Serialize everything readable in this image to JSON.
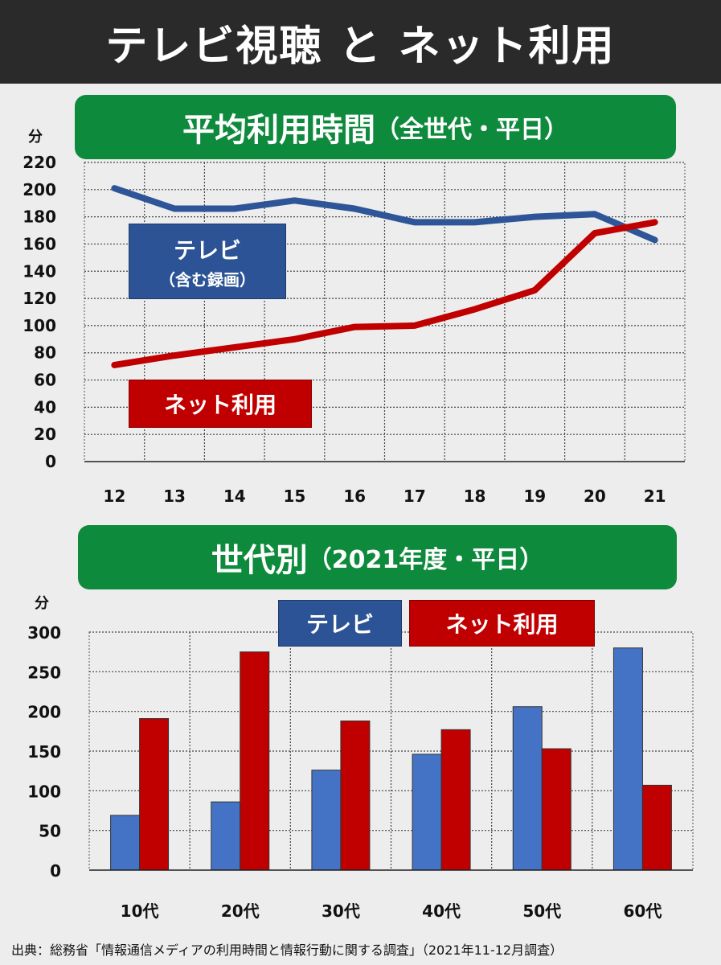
{
  "title": "テレビ視聴 と ネット利用",
  "source": "出典：総務省「情報通信メディアの利用時間と情報行動に関する調査」（2021年11-12月調査）",
  "colors": {
    "tv_line": "#2e5597",
    "net_line": "#c00000",
    "tv_bar": "#4472c4",
    "net_bar": "#c00000",
    "header_green": "#0e8a3c"
  },
  "chart_data": [
    {
      "type": "line",
      "title": "平均利用時間",
      "subtitle": "（全世代・平日）",
      "ylabel": "分",
      "xlabel": "",
      "x": [
        "12",
        "13",
        "14",
        "15",
        "16",
        "17",
        "18",
        "19",
        "20",
        "21"
      ],
      "yticks": [
        "220",
        "200",
        "180",
        "160",
        "140",
        "120",
        "100",
        "80",
        "60",
        "40",
        "20",
        "0"
      ],
      "ylim": [
        0,
        220
      ],
      "grid": true,
      "series": [
        {
          "name": "テレビ",
          "name_sub": "（含む録画）",
          "values": [
            201,
            186,
            186,
            192,
            186,
            176,
            176,
            180,
            182,
            163
          ]
        },
        {
          "name": "ネット利用",
          "values": [
            71,
            78,
            84,
            90,
            99,
            100,
            112,
            126,
            168,
            176
          ]
        }
      ]
    },
    {
      "type": "bar",
      "title": "世代別",
      "subtitle": "（2021年度・平日）",
      "ylabel": "分",
      "xlabel": "",
      "categories": [
        "10代",
        "20代",
        "30代",
        "40代",
        "50代",
        "60代"
      ],
      "yticks": [
        "300",
        "250",
        "200",
        "150",
        "100",
        "50",
        "0"
      ],
      "ylim": [
        0,
        300
      ],
      "grid": true,
      "series": [
        {
          "name": "テレビ",
          "values": [
            69,
            86,
            126,
            146,
            206,
            280
          ]
        },
        {
          "name": "ネット利用",
          "values": [
            191,
            275,
            188,
            177,
            153,
            107
          ]
        }
      ]
    }
  ]
}
